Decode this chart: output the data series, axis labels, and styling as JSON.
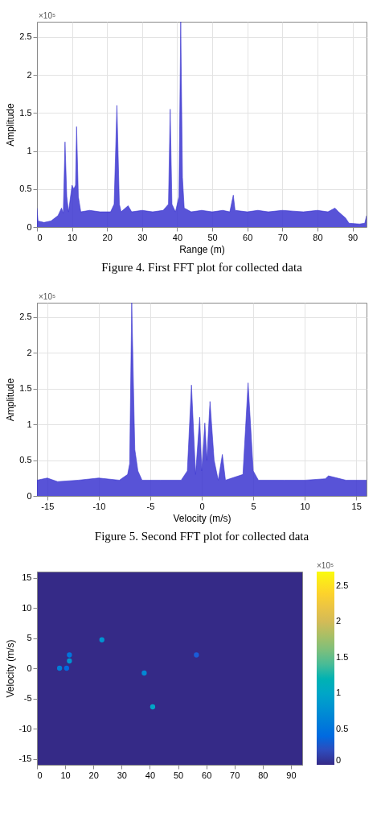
{
  "chart_data": [
    {
      "type": "area",
      "xlabel": "Range (m)",
      "ylabel": "Amplitude",
      "xlim": [
        0,
        94
      ],
      "xticks": [
        0,
        10,
        20,
        30,
        40,
        50,
        60,
        70,
        80,
        90
      ],
      "ylim": [
        0,
        2.7
      ],
      "yticks": [
        0,
        0.5,
        1,
        1.5,
        2,
        2.5
      ],
      "grid": true,
      "annotations": [
        "×10⁵",
        "Figure 4.  First FFT plot for collected data"
      ],
      "series": [
        {
          "color": "#3b35d0",
          "x": [
            0,
            0.3,
            2,
            4,
            6,
            7,
            7.5,
            8,
            8.5,
            9,
            10,
            10.5,
            11,
            11.3,
            11.8,
            12.5,
            15,
            18,
            21,
            22,
            22.8,
            23.5,
            24,
            26,
            27,
            30,
            33,
            36,
            37.5,
            38,
            38.5,
            39.5,
            40.5,
            41,
            41.5,
            42,
            44,
            47,
            50,
            53,
            55,
            56,
            56.5,
            60,
            63,
            66,
            70,
            73,
            76,
            80,
            83,
            85,
            86,
            88,
            89,
            92,
            93.5,
            94
          ],
          "values": [
            0.25,
            0.08,
            0.06,
            0.08,
            0.15,
            0.25,
            0.18,
            1.12,
            0.4,
            0.2,
            0.55,
            0.5,
            0.55,
            1.32,
            0.4,
            0.2,
            0.22,
            0.2,
            0.2,
            0.3,
            1.6,
            0.3,
            0.2,
            0.28,
            0.2,
            0.22,
            0.2,
            0.22,
            0.3,
            1.55,
            0.3,
            0.2,
            0.4,
            2.7,
            0.65,
            0.25,
            0.2,
            0.22,
            0.2,
            0.22,
            0.2,
            0.42,
            0.22,
            0.2,
            0.22,
            0.2,
            0.22,
            0.21,
            0.2,
            0.22,
            0.2,
            0.25,
            0.2,
            0.12,
            0.05,
            0.04,
            0.05,
            0.15
          ]
        }
      ]
    },
    {
      "type": "area",
      "xlabel": "Velocity (m/s)",
      "ylabel": "Amplitude",
      "xlim": [
        -16,
        16
      ],
      "xticks": [
        -15,
        -10,
        -5,
        0,
        5,
        10,
        15
      ],
      "ylim": [
        0,
        2.7
      ],
      "yticks": [
        0,
        0.5,
        1,
        1.5,
        2,
        2.5
      ],
      "grid": true,
      "annotations": [
        "×10⁵",
        "Figure 5.  Second FFT plot for collected data"
      ],
      "series": [
        {
          "color": "#3b35d0",
          "x": [
            -16,
            -15,
            -14,
            -12,
            -10,
            -8,
            -7.2,
            -7,
            -6.8,
            -6.5,
            -6.2,
            -5.8,
            -4,
            -2,
            -1.4,
            -1,
            -0.6,
            -0.2,
            0,
            0.3,
            0.5,
            0.8,
            1.2,
            1.6,
            2,
            2.3,
            4,
            4.5,
            5,
            5.5,
            8,
            10,
            12,
            12.3,
            14,
            16
          ],
          "values": [
            0.22,
            0.25,
            0.2,
            0.22,
            0.25,
            0.22,
            0.3,
            0.45,
            2.7,
            0.65,
            0.35,
            0.22,
            0.22,
            0.22,
            0.35,
            1.55,
            0.3,
            1.1,
            0.35,
            1.02,
            0.5,
            1.32,
            0.5,
            0.22,
            0.58,
            0.22,
            0.3,
            1.58,
            0.35,
            0.22,
            0.22,
            0.22,
            0.24,
            0.28,
            0.22,
            0.22
          ]
        }
      ]
    },
    {
      "type": "scatter",
      "ylabel": "Velocity (m/s)",
      "xlim": [
        0,
        94
      ],
      "xticks": [
        0,
        10,
        20,
        30,
        40,
        50,
        60,
        70,
        80,
        90
      ],
      "ylim": [
        -16,
        16
      ],
      "yticks": [
        -15,
        -10,
        -5,
        0,
        5,
        10,
        15
      ],
      "clim": [
        0,
        2.7
      ],
      "cticks": [
        0,
        0.5,
        1,
        1.5,
        2,
        2.5
      ],
      "annotations": [
        "×10⁵"
      ],
      "series": [
        {
          "x": [
            8,
            10.5,
            11.5,
            11.5,
            23,
            38,
            41,
            56.5
          ],
          "values": [
            0,
            0,
            1.2,
            2.2,
            4.7,
            -0.8,
            -6.4,
            2.2
          ],
          "cvalues": [
            0.6,
            0.4,
            0.8,
            0.5,
            0.8,
            0.7,
            1.0,
            0.3
          ]
        }
      ]
    }
  ]
}
